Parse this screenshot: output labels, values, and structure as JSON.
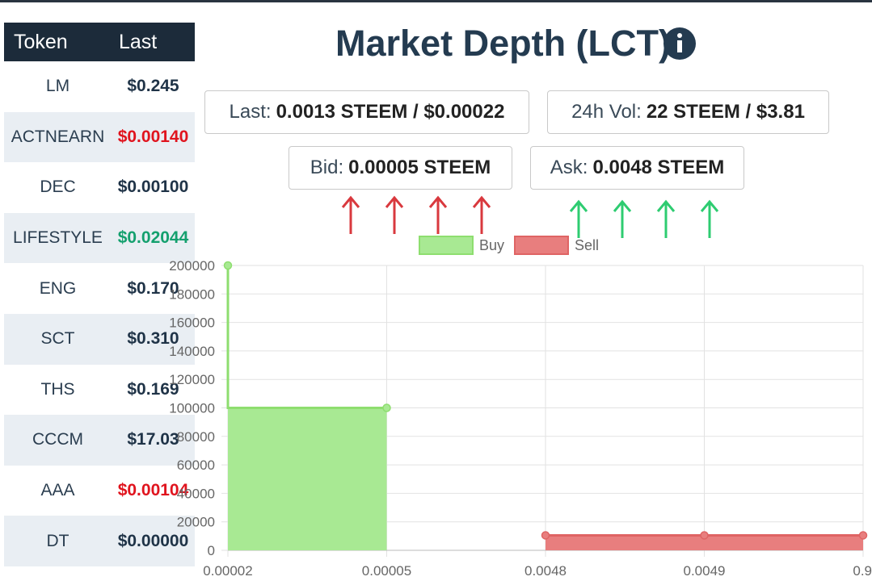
{
  "table": {
    "header": [
      "Token",
      "Last"
    ],
    "rows": [
      {
        "token": "LM",
        "last": "$0.245",
        "color": "#1f3347"
      },
      {
        "token": "ACTNEARN",
        "last": "$0.00140",
        "color": "#e0141e"
      },
      {
        "token": "DEC",
        "last": "$0.00100",
        "color": "#1f3347"
      },
      {
        "token": "LIFESTYLE",
        "last": "$0.02044",
        "color": "#14a06e"
      },
      {
        "token": "ENG",
        "last": "$0.170",
        "color": "#1f3347"
      },
      {
        "token": "SCT",
        "last": "$0.310",
        "color": "#1f3347"
      },
      {
        "token": "THS",
        "last": "$0.169",
        "color": "#1f3347"
      },
      {
        "token": "CCCM",
        "last": "$17.03",
        "color": "#1f3347"
      },
      {
        "token": "AAA",
        "last": "$0.00104",
        "color": "#e0141e"
      },
      {
        "token": "DT",
        "last": "$0.00000",
        "color": "#1f3347"
      }
    ]
  },
  "header": {
    "title": "Market Depth (LCT)"
  },
  "stats": [
    {
      "label": "Last:",
      "value": "0.0013 STEEM / $0.00022"
    },
    {
      "label": "24h Vol:",
      "value": "22 STEEM / $3.81"
    },
    {
      "label": "Bid:",
      "value": "0.00005 STEEM"
    },
    {
      "label": "Ask:",
      "value": "0.0048 STEEM"
    }
  ],
  "chart_data": {
    "type": "line",
    "stepped": "before",
    "fill": true,
    "grid": true,
    "categories": [
      "0.00002",
      "0.00005",
      "0.0048",
      "0.0049",
      "0.9"
    ],
    "series": [
      {
        "name": "Buy",
        "color": "#8ede6f",
        "fill_color": "#a8e993",
        "values": [
          200000,
          100000,
          null,
          null,
          null
        ]
      },
      {
        "name": "Sell",
        "color": "#df6464",
        "fill_color": "#e87e7e",
        "values": [
          null,
          null,
          10500,
          10500,
          10500
        ]
      }
    ],
    "ylim": [
      0,
      200000
    ],
    "yticks": [
      0,
      20000,
      40000,
      60000,
      80000,
      100000,
      120000,
      140000,
      160000,
      180000,
      200000
    ]
  }
}
